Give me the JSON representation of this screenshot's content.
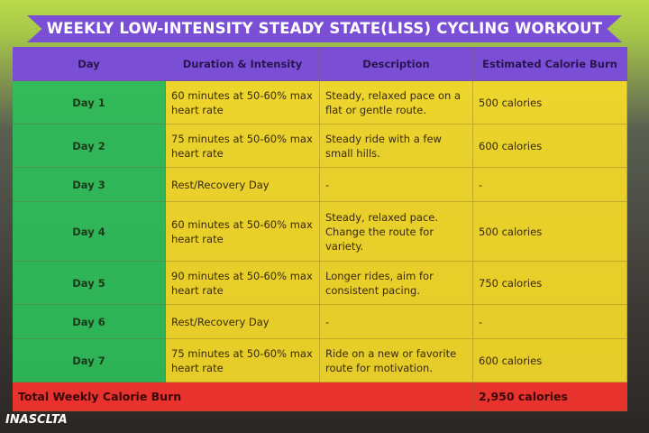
{
  "title": "WEEKLY LOW-INTENSITY STEADY STATE(LISS) CYCLING WORKOUT",
  "table": {
    "headers": [
      "Day",
      "Duration & Intensity",
      "Description",
      "Estimated Calorie Burn"
    ],
    "rows": [
      [
        "Day 1",
        "60 minutes at 50-60% max heart rate",
        "Steady, relaxed pace on a flat or gentle route.",
        "500 calories"
      ],
      [
        "Day 2",
        "75 minutes at 50-60% max heart rate",
        "Steady ride with a few small hills.",
        "600 calories"
      ],
      [
        "Day 3",
        "Rest/Recovery Day",
        "-",
        "-"
      ],
      [
        "Day 4",
        "60 minutes at 50-60% max heart rate",
        "Steady, relaxed pace. Change the route for variety.",
        "500 calories"
      ],
      [
        "Day 5",
        "90 minutes at 50-60% max heart rate",
        "Longer rides, aim for consistent pacing.",
        "750 calories"
      ],
      [
        "Day 6",
        "Rest/Recovery Day",
        "-",
        "-"
      ],
      [
        "Day 7",
        "75 minutes at 50-60% max heart rate",
        "Ride on a new or favorite route for motivation.",
        "600 calories"
      ]
    ],
    "total": {
      "label": "Total Weekly Calorie Burn",
      "value": "2,950 calories"
    }
  },
  "brand": "INASCLTA"
}
